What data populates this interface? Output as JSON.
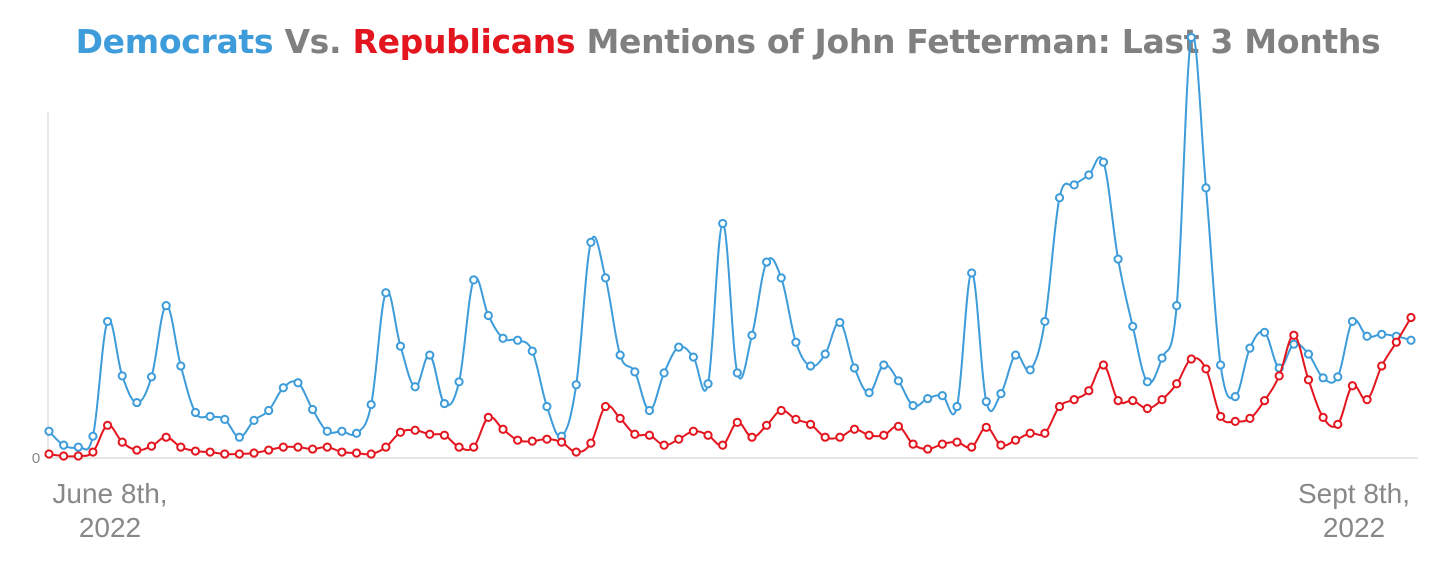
{
  "title": {
    "part1": "Democrats",
    "part2": " Vs. ",
    "part3": "Republicans",
    "part4": " Mentions of John Fetterman: Last 3 Months"
  },
  "colors": {
    "democrats": "#3d9cd9",
    "republicans": "#e3151e",
    "neutral_text": "#808080",
    "axis": "#d9d9d9"
  },
  "chart_data": {
    "type": "line",
    "y_tick_label": "0",
    "x_start_label_line1": "June 8th,",
    "x_start_label_line2": "2022",
    "x_end_label_line1": "Sept 8th,",
    "x_end_label_line2": "2022",
    "ylim": [
      0,
      380
    ],
    "grid": false,
    "legend": "title",
    "series": [
      {
        "name": "Democrats",
        "color": "#3d9cd9",
        "values": [
          25,
          11,
          9,
          20,
          136,
          81,
          54,
          80,
          152,
          91,
          44,
          40,
          37,
          19,
          36,
          46,
          69,
          74,
          47,
          25,
          25,
          23,
          52,
          165,
          111,
          70,
          102,
          53,
          75,
          178,
          142,
          119,
          117,
          106,
          50,
          20,
          72,
          216,
          180,
          102,
          85,
          46,
          84,
          110,
          100,
          73,
          235,
          84,
          122,
          196,
          180,
          115,
          91,
          103,
          135,
          89,
          64,
          92,
          76,
          51,
          58,
          61,
          50,
          185,
          55,
          63,
          102,
          87,
          136,
          261,
          274,
          284,
          297,
          199,
          131,
          75,
          99,
          152,
          423,
          271,
          92,
          60,
          109,
          125,
          89,
          113,
          103,
          79,
          80,
          136,
          121,
          123,
          121,
          117
        ]
      },
      {
        "name": "Republicans",
        "color": "#e3151e",
        "values": [
          2,
          0,
          0,
          4,
          31,
          14,
          6,
          10,
          19,
          9,
          5,
          4,
          2,
          2,
          3,
          6,
          9,
          9,
          7,
          9,
          4,
          3,
          2,
          9,
          24,
          26,
          22,
          21,
          9,
          9,
          39,
          27,
          16,
          15,
          17,
          14,
          4,
          13,
          50,
          38,
          22,
          21,
          11,
          17,
          25,
          21,
          11,
          34,
          19,
          31,
          46,
          37,
          32,
          19,
          19,
          27,
          21,
          21,
          30,
          12,
          7,
          12,
          14,
          9,
          29,
          11,
          16,
          23,
          23,
          50,
          57,
          66,
          92,
          56,
          56,
          48,
          57,
          73,
          98,
          88,
          40,
          35,
          38,
          56,
          81,
          122,
          77,
          39,
          32,
          71,
          57,
          91,
          115,
          140
        ]
      }
    ]
  }
}
